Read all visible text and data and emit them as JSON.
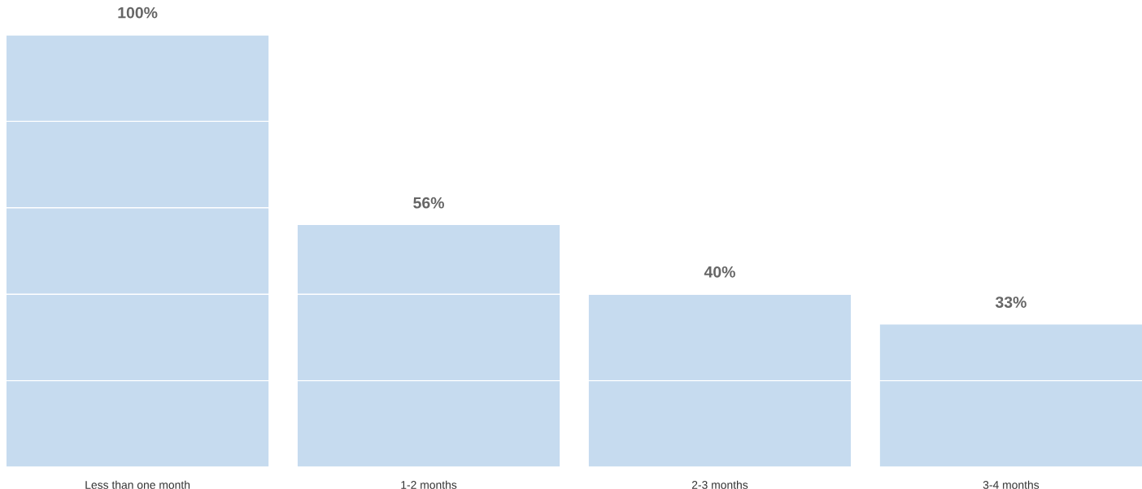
{
  "chart_data": {
    "type": "bar",
    "categories": [
      "Less than one month",
      "1-2 months",
      "2-3 months",
      "3-4 months"
    ],
    "values": [
      100,
      56,
      40,
      33
    ],
    "value_labels": [
      "100%",
      "56%",
      "40%",
      "33%"
    ],
    "color": "#c6dbef",
    "ylim": [
      0,
      100
    ],
    "yticks": [
      {
        "value": 0,
        "label": null
      },
      {
        "value": 20,
        "label": null
      },
      {
        "value": 40,
        "label": null
      },
      {
        "value": 60,
        "label": null
      },
      {
        "value": 80,
        "label": null
      },
      {
        "value": 100,
        "label": null
      }
    ],
    "grid": "y",
    "tick_labels": "x"
  }
}
